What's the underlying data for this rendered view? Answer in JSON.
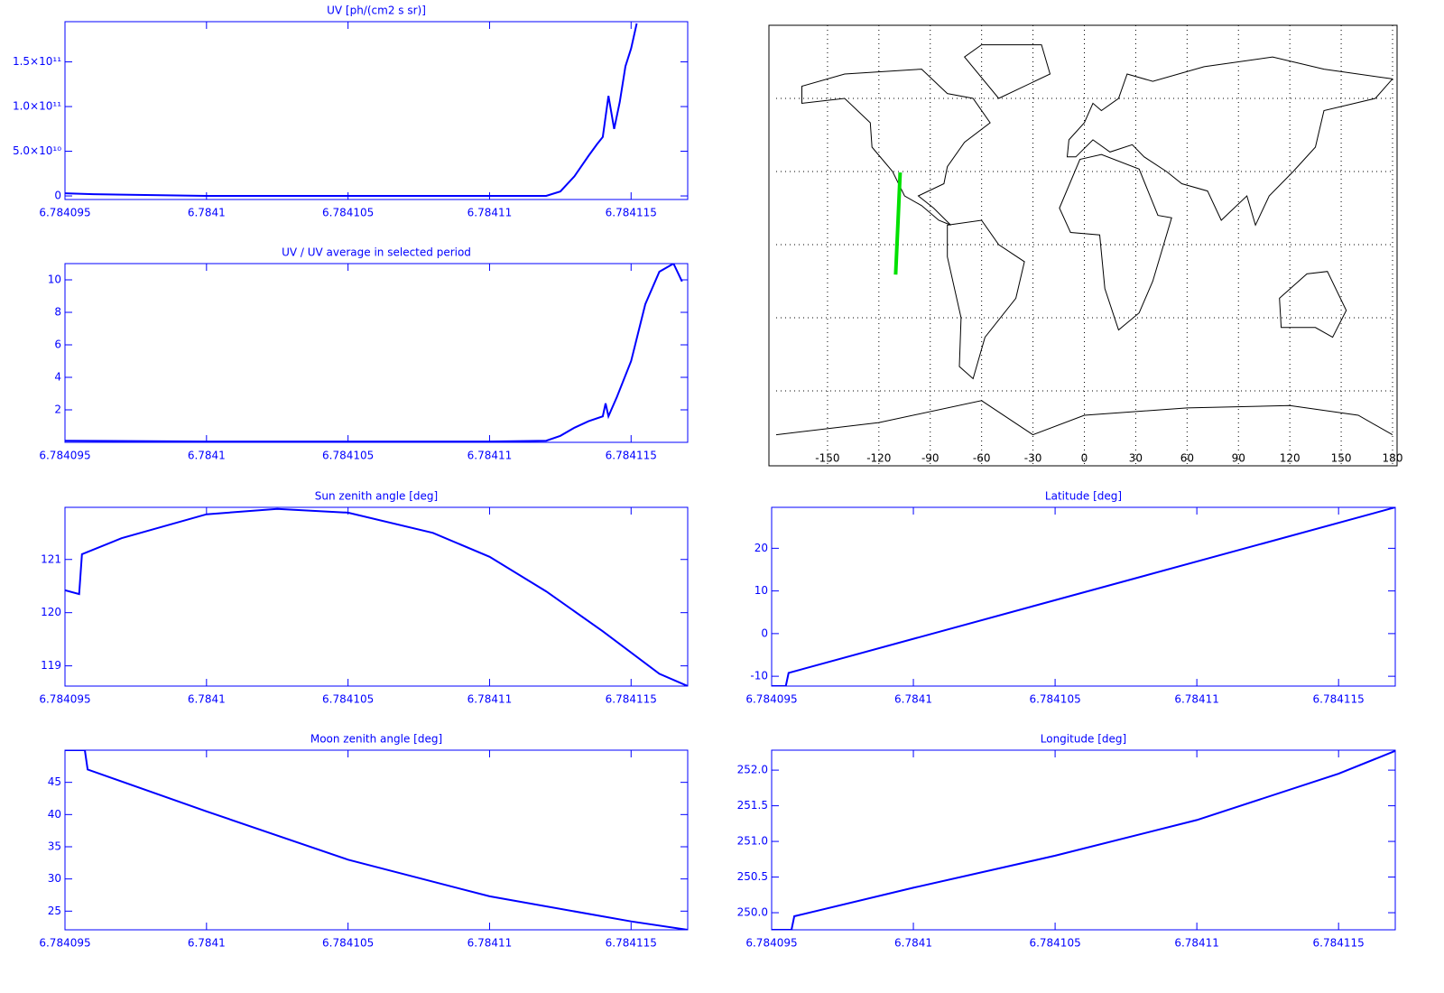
{
  "chart_data": [
    {
      "type": "line",
      "title": "UV [ph/(cm2 s sr)]",
      "color": "#0000ff",
      "x": [
        6.784095,
        6.784096,
        6.7841,
        6.784105,
        6.78411,
        6.784112,
        6.7841125,
        6.784113,
        6.7841135,
        6.7841138,
        6.784114,
        6.7841142,
        6.7841144,
        6.7841146,
        6.7841148,
        6.784115,
        6.7841152
      ],
      "values": [
        3000000000,
        2000000000,
        0,
        0,
        0,
        0,
        5000000000,
        22000000000,
        45000000000,
        58000000000,
        66000000000,
        112000000000,
        75000000000,
        105000000000,
        145000000000,
        165000000000,
        193000000000
      ],
      "xlim": [
        6.784095,
        6.784117
      ],
      "ylim": [
        -4000000000,
        195000000000
      ],
      "xticks": [
        6.784095,
        6.7841,
        6.784105,
        6.78411,
        6.784115
      ],
      "yticks": [
        0,
        {
          "value": 50000000000,
          "label": "5.0×10¹⁰"
        },
        {
          "value": 100000000000,
          "label": "1.0×10¹¹"
        },
        {
          "value": 150000000000,
          "label": "1.5×10¹¹"
        }
      ]
    },
    {
      "type": "map",
      "color": "#00e000",
      "x": [
        -110.2,
        -108.8,
        -107.6
      ],
      "values": [
        -12.3,
        10,
        29.6
      ],
      "xlim": [
        -180,
        180
      ],
      "ylim": [
        -90,
        90
      ],
      "xticks": [
        -150,
        -120,
        -90,
        -60,
        -30,
        0,
        30,
        60,
        90,
        120,
        150,
        180
      ],
      "grid": true
    },
    {
      "type": "line",
      "title": "UV / UV average in selected period",
      "color": "#0000ff",
      "x": [
        6.784095,
        6.7841,
        6.784105,
        6.78411,
        6.784112,
        6.7841125,
        6.784113,
        6.7841135,
        6.784114,
        6.7841141,
        6.7841142,
        6.7841143,
        6.7841145,
        6.784115,
        6.7841155,
        6.784116,
        6.7841165,
        6.7841168
      ],
      "values": [
        0.1,
        0.05,
        0.05,
        0.05,
        0.1,
        0.4,
        0.9,
        1.3,
        1.6,
        2.4,
        1.6,
        2.0,
        2.8,
        5.0,
        8.5,
        10.5,
        11,
        9.9
      ],
      "xlim": [
        6.784095,
        6.784117
      ],
      "ylim": [
        0,
        11
      ],
      "xticks": [
        6.784095,
        6.7841,
        6.784105,
        6.78411,
        6.784115
      ],
      "yticks": [
        2,
        4,
        6,
        8,
        10
      ]
    },
    {
      "type": "line",
      "title": "Sun zenith angle [deg]",
      "color": "#0000ff",
      "x": [
        6.784095,
        6.7840955,
        6.7840956,
        6.784097,
        6.7841,
        6.7841025,
        6.784105,
        6.784108,
        6.78411,
        6.784112,
        6.784114,
        6.784116,
        6.784117
      ],
      "values": [
        120.42,
        120.35,
        121.1,
        121.4,
        121.85,
        121.95,
        121.88,
        121.5,
        121.05,
        120.4,
        119.65,
        118.85,
        118.62
      ],
      "xlim": [
        6.784095,
        6.784117
      ],
      "ylim": [
        118.62,
        121.98
      ],
      "xticks": [
        6.784095,
        6.7841,
        6.784105,
        6.78411,
        6.784115
      ],
      "yticks": [
        119,
        120,
        121
      ]
    },
    {
      "type": "line",
      "title": "Latitude [deg]",
      "color": "#0000ff",
      "x": [
        6.784095,
        6.7840955,
        6.7840956,
        6.784117
      ],
      "values": [
        -12.3,
        -12.3,
        -9.2,
        29.6
      ],
      "xlim": [
        6.784095,
        6.784117
      ],
      "ylim": [
        -12.3,
        29.6
      ],
      "xticks": [
        6.784095,
        6.7841,
        6.784105,
        6.78411,
        6.784115
      ],
      "yticks": [
        -10,
        0,
        10,
        20
      ]
    },
    {
      "type": "line",
      "title": "Moon zenith angle [deg]",
      "color": "#0000ff",
      "x": [
        6.784095,
        6.7840957,
        6.7840958,
        6.7841,
        6.784105,
        6.78411,
        6.784115,
        6.784117
      ],
      "values": [
        50,
        50,
        47,
        40.5,
        33,
        27.3,
        23.4,
        22.1
      ],
      "xlim": [
        6.784095,
        6.784117
      ],
      "ylim": [
        22.1,
        50
      ],
      "xticks": [
        6.784095,
        6.7841,
        6.784105,
        6.78411,
        6.784115
      ],
      "yticks": [
        25,
        30,
        35,
        40,
        45
      ]
    },
    {
      "type": "line",
      "title": "Longitude [deg]",
      "color": "#0000ff",
      "x": [
        6.784095,
        6.7840957,
        6.7840958,
        6.7841,
        6.784105,
        6.78411,
        6.784115,
        6.784117
      ],
      "values": [
        249.76,
        249.76,
        249.95,
        250.35,
        250.8,
        251.3,
        251.95,
        252.27
      ],
      "xlim": [
        6.784095,
        6.784117
      ],
      "ylim": [
        249.76,
        252.28
      ],
      "xticks": [
        6.784095,
        6.7841,
        6.784105,
        6.78411,
        6.784115
      ],
      "yticks": [
        {
          "value": 250,
          "label": "250.0"
        },
        250.5,
        {
          "value": 251,
          "label": "251.0"
        },
        251.5,
        {
          "value": 252,
          "label": "252.0"
        }
      ]
    }
  ]
}
